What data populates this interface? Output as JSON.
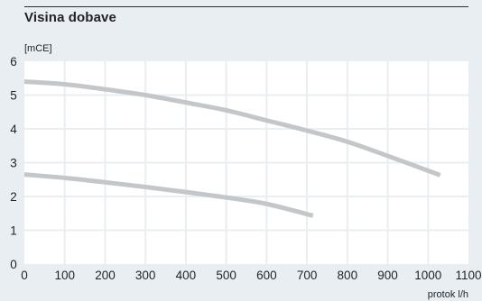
{
  "chart_data": {
    "type": "line",
    "title": "Visina dobave",
    "ylabel": "[mCE]",
    "xlabel": "protok l/h",
    "xlim": [
      0,
      1100
    ],
    "ylim": [
      0,
      6
    ],
    "x_ticks": [
      0,
      100,
      200,
      300,
      400,
      500,
      600,
      700,
      800,
      900,
      1000,
      1100
    ],
    "y_ticks": [
      0,
      1,
      2,
      3,
      4,
      5,
      6
    ],
    "grid": true,
    "series": [
      {
        "color": "#c4c7c9",
        "points": [
          [
            0,
            5.4
          ],
          [
            100,
            5.32
          ],
          [
            200,
            5.17
          ],
          [
            300,
            5.0
          ],
          [
            400,
            4.78
          ],
          [
            500,
            4.55
          ],
          [
            600,
            4.25
          ],
          [
            700,
            3.95
          ],
          [
            800,
            3.62
          ],
          [
            900,
            3.2
          ],
          [
            1030,
            2.63
          ]
        ]
      },
      {
        "color": "#c4c7c9",
        "points": [
          [
            0,
            2.65
          ],
          [
            100,
            2.55
          ],
          [
            200,
            2.42
          ],
          [
            300,
            2.28
          ],
          [
            400,
            2.13
          ],
          [
            500,
            1.97
          ],
          [
            600,
            1.78
          ],
          [
            715,
            1.43
          ]
        ]
      }
    ]
  },
  "colors": {
    "background": "#e9eef2",
    "plot_area": "#ffffff",
    "grid": "#e9eef2",
    "curve": "#c4c7c9",
    "text": "#1f2327"
  }
}
